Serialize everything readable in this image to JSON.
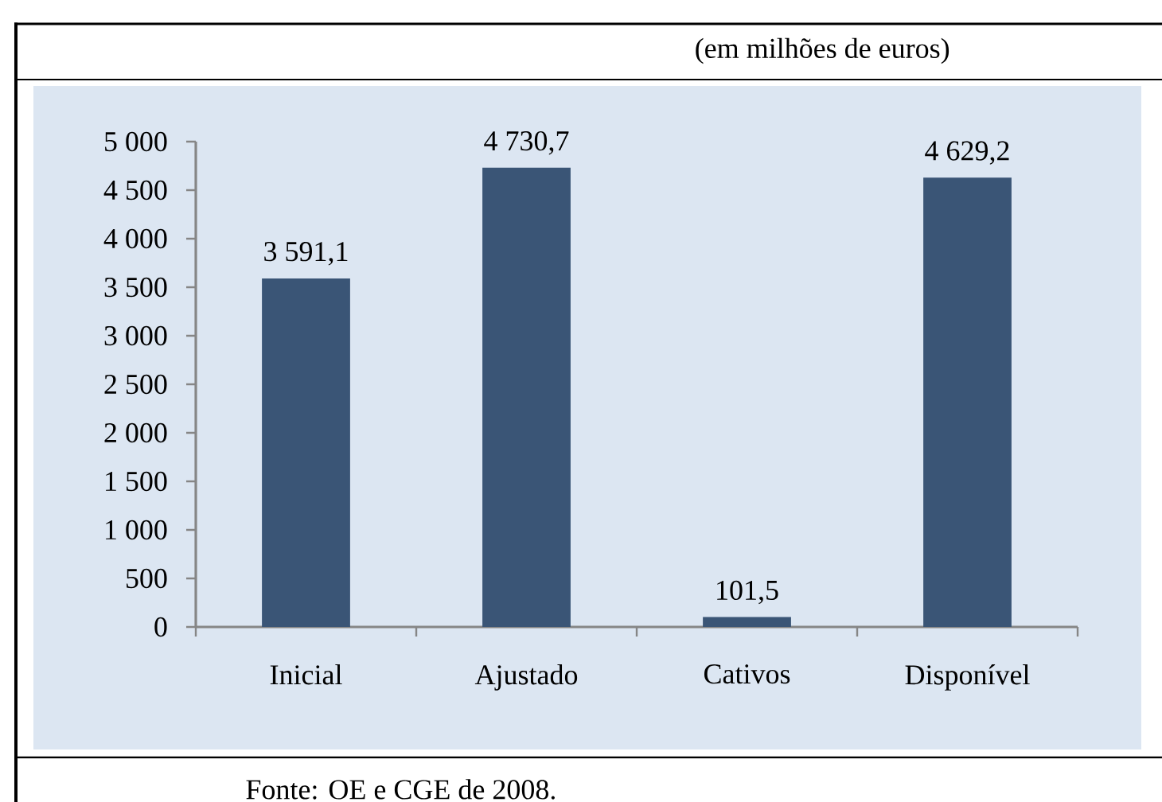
{
  "chart_data": {
    "type": "bar",
    "title": "(em milhões de euros)",
    "categories": [
      "Inicial",
      "Ajustado",
      "Cativos",
      "Disponível"
    ],
    "values": [
      3591.1,
      4730.7,
      101.5,
      4629.2
    ],
    "color": "#3a5576",
    "value_labels": [
      "3 591,1",
      "4 730,7",
      "101,5",
      "4 629,2"
    ],
    "ylim": [
      0,
      5000
    ],
    "yticks": [
      0,
      500,
      {
        "value": 1000,
        "label": "1 000"
      },
      {
        "value": 1500,
        "label": "1 500"
      },
      {
        "value": 2000,
        "label": "2 000"
      },
      {
        "value": 2500,
        "label": "2 500"
      },
      {
        "value": 3000,
        "label": "3 000"
      },
      {
        "value": 3500,
        "label": "3 500"
      },
      {
        "value": 4000,
        "label": "4 000"
      },
      {
        "value": 4500,
        "label": "4 500"
      },
      {
        "value": 5000,
        "label": "5 000"
      }
    ],
    "annotations": [
      "Fonte: OE e CGE de 2008."
    ]
  }
}
